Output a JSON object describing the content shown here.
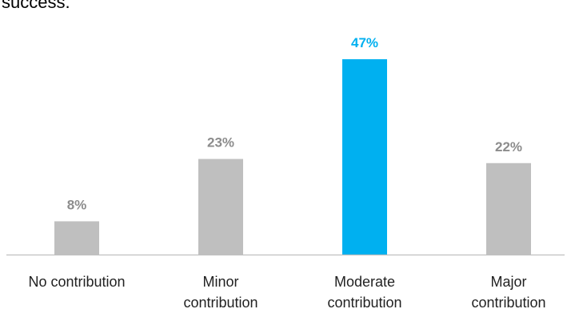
{
  "header": {
    "title_fragment": "success."
  },
  "chart_data": {
    "type": "bar",
    "categories": [
      [
        "No contribution"
      ],
      [
        "Minor",
        "contribution"
      ],
      [
        "Moderate",
        "contribution"
      ],
      [
        "Major",
        "contribution"
      ]
    ],
    "values": [
      8,
      23,
      47,
      22
    ],
    "data_labels": [
      "8%",
      "23%",
      "47%",
      "22%"
    ],
    "highlight_index": 2,
    "ylim": [
      0,
      52
    ],
    "grid": false,
    "colors": {
      "default": "#bfbfbf",
      "highlight": "#00b0f0",
      "default_label": "#8c8c8c",
      "axis": "#bfbfbf"
    }
  }
}
